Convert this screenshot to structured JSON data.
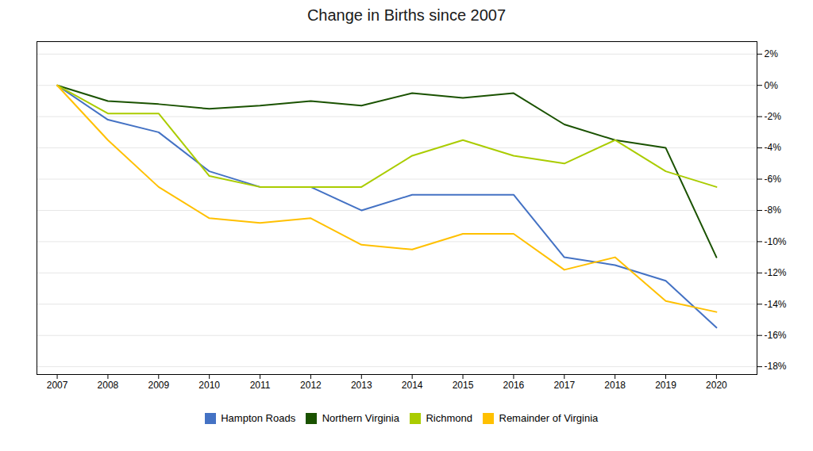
{
  "chart_data": {
    "type": "line",
    "title": "Change in Births since 2007",
    "x": [
      2007,
      2008,
      2009,
      2010,
      2011,
      2012,
      2013,
      2014,
      2015,
      2016,
      2017,
      2018,
      2019,
      2020
    ],
    "series": [
      {
        "name": "Hampton Roads",
        "color": "#4472C4",
        "values": [
          0,
          -2.2,
          -3.0,
          -5.5,
          -6.5,
          -6.5,
          -8.0,
          -7.0,
          -7.0,
          -7.0,
          -11.0,
          -11.5,
          -12.5,
          -15.5
        ]
      },
      {
        "name": "Northern Virginia",
        "color": "#1a5200",
        "values": [
          0,
          -1.0,
          -1.2,
          -1.5,
          -1.3,
          -1.0,
          -1.3,
          -0.5,
          -0.8,
          -0.5,
          -2.5,
          -3.5,
          -4.0,
          -11.0
        ]
      },
      {
        "name": "Richmond",
        "color": "#AACC00",
        "values": [
          0,
          -1.8,
          -1.8,
          -5.8,
          -6.5,
          -6.5,
          -6.5,
          -4.5,
          -3.5,
          -4.5,
          -5.0,
          -3.5,
          -5.5,
          -6.5
        ]
      },
      {
        "name": "Remainder of Virginia",
        "color": "#FFC000",
        "values": [
          0,
          -3.5,
          -6.5,
          -8.5,
          -8.8,
          -8.5,
          -10.2,
          -10.5,
          -9.5,
          -9.5,
          -11.8,
          -11.0,
          -13.8,
          -14.5
        ]
      }
    ],
    "xlim": [
      2006.6,
      2020.8
    ],
    "xticks": [
      2007,
      2008,
      2009,
      2010,
      2011,
      2012,
      2013,
      2014,
      2015,
      2016,
      2017,
      2018,
      2019,
      2020
    ],
    "ylim": [
      -18.5,
      2.8
    ],
    "yticks": [
      {
        "value": 2,
        "label": "2%"
      },
      {
        "value": 0,
        "label": "0%"
      },
      {
        "value": -2,
        "label": "-2%"
      },
      {
        "value": -4,
        "label": "-4%"
      },
      {
        "value": -6,
        "label": "-6%"
      },
      {
        "value": -8,
        "label": "-8%"
      },
      {
        "value": -10,
        "label": "-10%"
      },
      {
        "value": -12,
        "label": "-12%"
      },
      {
        "value": -14,
        "label": "-14%"
      },
      {
        "value": -16,
        "label": "-16%"
      },
      {
        "value": -18,
        "label": "-18%"
      }
    ],
    "grid": true,
    "legend": "bottom"
  }
}
